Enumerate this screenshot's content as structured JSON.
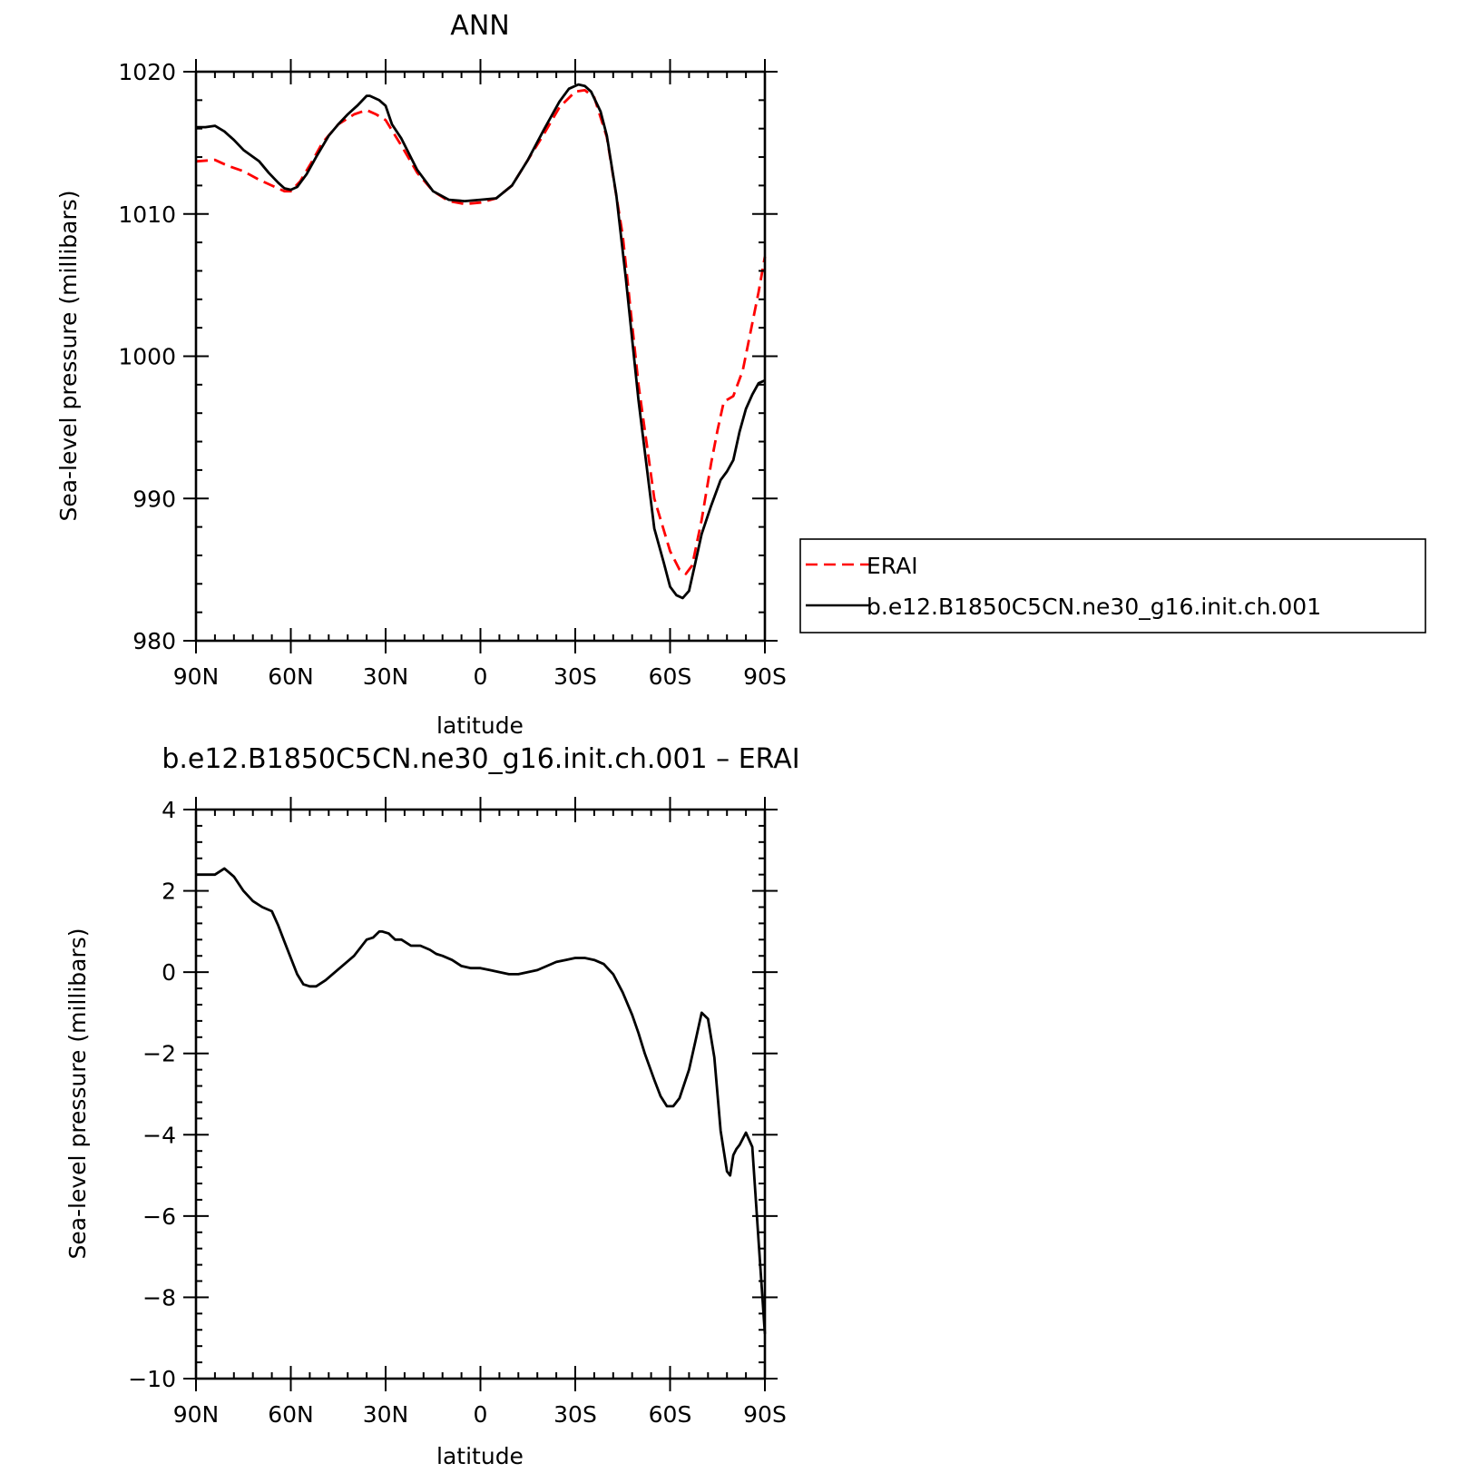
{
  "chart_data": [
    {
      "type": "line",
      "title": "ANN",
      "xlabel": "latitude",
      "ylabel": "Sea-level pressure (millibars)",
      "xlim": [
        90,
        -90
      ],
      "ylim": [
        980,
        1020
      ],
      "x_ticks": [
        90,
        60,
        30,
        0,
        -30,
        -60,
        -90
      ],
      "x_tick_labels": [
        "90N",
        "60N",
        "30N",
        "0",
        "30S",
        "60S",
        "90S"
      ],
      "y_ticks": [
        980,
        990,
        1000,
        1010,
        1020
      ],
      "y_tick_labels": [
        "980",
        "990",
        "1000",
        "1010",
        "1020"
      ],
      "grid": false,
      "legend_position": "right",
      "series": [
        {
          "name": "ERAI",
          "color": "#ff0000",
          "dash": true,
          "x": [
            90,
            84,
            80,
            75,
            70,
            65,
            62,
            60,
            57,
            53,
            50,
            45,
            40,
            36,
            33,
            30,
            25,
            20,
            15,
            10,
            5,
            0,
            -5,
            -10,
            -15,
            -20,
            -25,
            -30,
            -33,
            -36,
            -40,
            -45,
            -50,
            -55,
            -60,
            -63,
            -65,
            -67,
            -70,
            -73,
            -75,
            -77,
            -80,
            -83,
            -85,
            -88,
            -90
          ],
          "values": [
            1013.7,
            1013.8,
            1013.4,
            1013.0,
            1012.4,
            1011.9,
            1011.6,
            1011.6,
            1012.3,
            1013.8,
            1015.0,
            1016.3,
            1017.0,
            1017.3,
            1017.0,
            1016.6,
            1014.8,
            1012.9,
            1011.6,
            1010.9,
            1010.7,
            1010.8,
            1011.1,
            1012.0,
            1013.8,
            1015.6,
            1017.5,
            1018.6,
            1018.7,
            1018.2,
            1015.4,
            1008.5,
            998.0,
            990.0,
            986.3,
            985.0,
            984.7,
            985.3,
            988.5,
            992.5,
            994.8,
            996.8,
            997.2,
            999.0,
            1001.2,
            1004.5,
            1007.0
          ]
        },
        {
          "name": "b.e12.B1850C5CN.ne30_g16.init.ch.001",
          "color": "#000000",
          "dash": false,
          "x": [
            90,
            87,
            84,
            81,
            78,
            75,
            70,
            67,
            64,
            62,
            60,
            58,
            55,
            52,
            48,
            45,
            42,
            39,
            36,
            35,
            32,
            30,
            28,
            25,
            20,
            15,
            10,
            5,
            0,
            -5,
            -10,
            -15,
            -20,
            -25,
            -28,
            -31,
            -33,
            -35,
            -38,
            -40,
            -43,
            -46,
            -50,
            -55,
            -58,
            -60,
            -62,
            -64,
            -66,
            -68,
            -70,
            -73,
            -76,
            -78,
            -80,
            -82,
            -84,
            -86,
            -88,
            -90
          ],
          "values": [
            1016.1,
            1016.1,
            1016.2,
            1015.8,
            1015.2,
            1014.5,
            1013.7,
            1012.9,
            1012.2,
            1011.8,
            1011.7,
            1011.9,
            1012.8,
            1014.0,
            1015.5,
            1016.3,
            1017.0,
            1017.6,
            1018.3,
            1018.3,
            1018.0,
            1017.6,
            1016.3,
            1015.3,
            1013.1,
            1011.6,
            1011.0,
            1010.9,
            1011.0,
            1011.1,
            1012.0,
            1013.8,
            1015.9,
            1017.9,
            1018.8,
            1019.1,
            1019.0,
            1018.6,
            1017.2,
            1015.5,
            1011.3,
            1005.5,
            996.9,
            987.9,
            985.5,
            983.8,
            983.2,
            983.0,
            983.5,
            985.5,
            987.5,
            989.5,
            991.3,
            991.9,
            992.7,
            994.7,
            996.3,
            997.3,
            998.1,
            998.3
          ]
        }
      ]
    },
    {
      "type": "line",
      "title": "b.e12.B1850C5CN.ne30_g16.init.ch.001  –  ERAI",
      "xlabel": "latitude",
      "ylabel": "Sea-level pressure (millibars)",
      "xlim": [
        90,
        -90
      ],
      "ylim": [
        -10,
        4
      ],
      "x_ticks": [
        90,
        60,
        30,
        0,
        -30,
        -60,
        -90
      ],
      "x_tick_labels": [
        "90N",
        "60N",
        "30N",
        "0",
        "30S",
        "60S",
        "90S"
      ],
      "y_ticks": [
        -10,
        -8,
        -6,
        -4,
        -2,
        0,
        2,
        4
      ],
      "y_tick_labels": [
        "−10",
        "−8",
        "−6",
        "−4",
        "−2",
        "0",
        "2",
        "4"
      ],
      "grid": false,
      "series": [
        {
          "color": "#000000",
          "dash": false,
          "x": [
            90,
            87,
            84,
            81,
            78,
            75,
            72,
            69,
            66,
            64,
            62,
            60,
            58,
            56,
            54,
            52,
            49,
            46,
            43,
            40,
            38,
            36,
            34,
            32,
            31,
            29,
            27,
            25,
            22,
            19,
            16,
            14,
            12,
            9,
            6,
            3,
            0,
            -3,
            -6,
            -9,
            -12,
            -15,
            -18,
            -21,
            -24,
            -27,
            -30,
            -33,
            -36,
            -39,
            -42,
            -45,
            -48,
            -50,
            -52,
            -55,
            -57,
            -59,
            -61,
            -63,
            -66,
            -68,
            -70,
            -72,
            -74,
            -76,
            -78,
            -79,
            -80,
            -81,
            -82,
            -84,
            -86,
            -88,
            -90
          ],
          "values": [
            2.4,
            2.4,
            2.4,
            2.55,
            2.35,
            2.0,
            1.75,
            1.6,
            1.5,
            1.15,
            0.75,
            0.35,
            -0.05,
            -0.3,
            -0.35,
            -0.35,
            -0.2,
            0.0,
            0.2,
            0.4,
            0.6,
            0.8,
            0.85,
            1.0,
            1.0,
            0.95,
            0.8,
            0.8,
            0.65,
            0.65,
            0.55,
            0.45,
            0.4,
            0.3,
            0.15,
            0.1,
            0.1,
            0.05,
            0.0,
            -0.05,
            -0.05,
            0.0,
            0.05,
            0.15,
            0.25,
            0.3,
            0.35,
            0.35,
            0.3,
            0.2,
            -0.05,
            -0.5,
            -1.05,
            -1.5,
            -2.0,
            -2.65,
            -3.05,
            -3.3,
            -3.3,
            -3.1,
            -2.4,
            -1.7,
            -1.0,
            -1.15,
            -2.1,
            -3.9,
            -4.9,
            -5.0,
            -4.5,
            -4.35,
            -4.25,
            -3.95,
            -4.3,
            -6.6,
            -8.9
          ]
        }
      ]
    }
  ]
}
